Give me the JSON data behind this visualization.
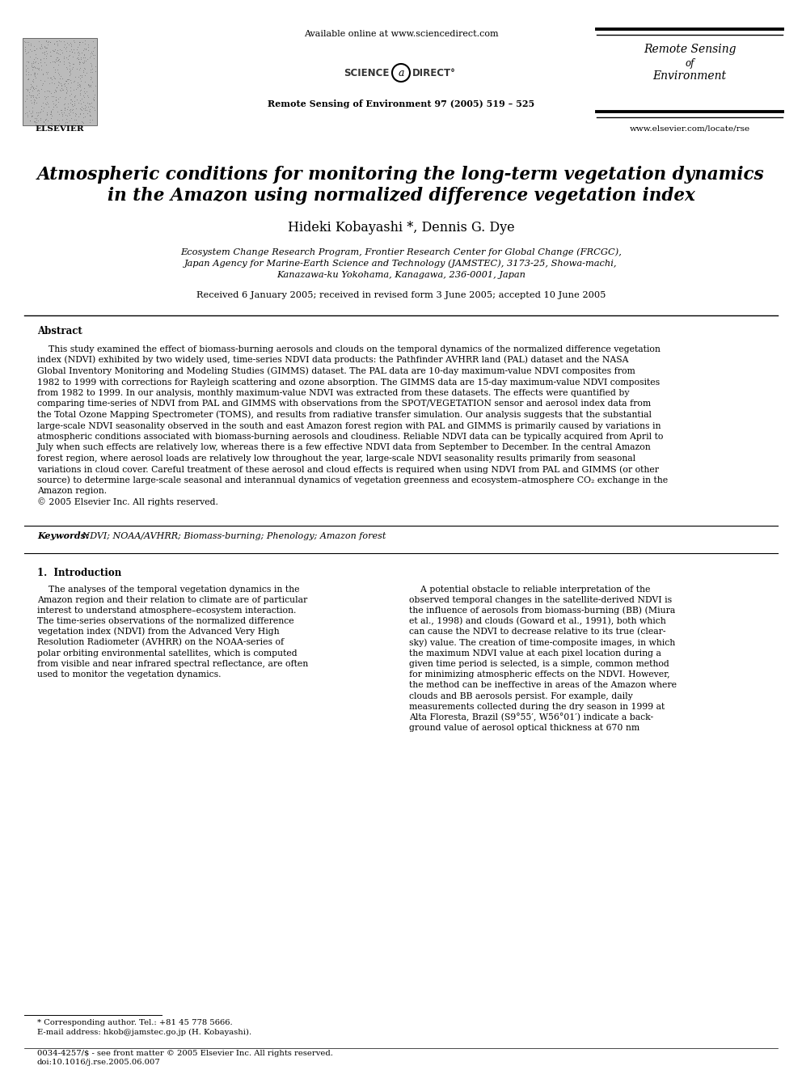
{
  "page_bg": "#ffffff",
  "header": {
    "available_online": "Available online at www.sciencedirect.com",
    "journal_ref": "Remote Sensing of Environment 97 (2005) 519 – 525",
    "journal_name_line1": "Remote Sensing",
    "journal_name_of": "of",
    "journal_name_line2": "Environment",
    "journal_url": "www.elsevier.com/locate/rse"
  },
  "title_line1": "Atmospheric conditions for monitoring the long-term vegetation dynamics",
  "title_line2": "in the Amazon using normalized difference vegetation index",
  "authors": "Hideki Kobayashi *, Dennis G. Dye",
  "affiliation_line1": "Ecosystem Change Research Program, Frontier Research Center for Global Change (FRCGC),",
  "affiliation_line2": "Japan Agency for Marine-Earth Science and Technology (JAMSTEC), 3173-25, Showa-machi,",
  "affiliation_line3": "Kanazawa-ku Yokohama, Kanagawa, 236-0001, Japan",
  "received": "Received 6 January 2005; received in revised form 3 June 2005; accepted 10 June 2005",
  "abstract_title": "Abstract",
  "abstract_lines": [
    "    This study examined the effect of biomass-burning aerosols and clouds on the temporal dynamics of the normalized difference vegetation",
    "index (NDVI) exhibited by two widely used, time-series NDVI data products: the Pathfinder AVHRR land (PAL) dataset and the NASA",
    "Global Inventory Monitoring and Modeling Studies (GIMMS) dataset. The PAL data are 10-day maximum-value NDVI composites from",
    "1982 to 1999 with corrections for Rayleigh scattering and ozone absorption. The GIMMS data are 15-day maximum-value NDVI composites",
    "from 1982 to 1999. In our analysis, monthly maximum-value NDVI was extracted from these datasets. The effects were quantified by",
    "comparing time-series of NDVI from PAL and GIMMS with observations from the SPOT/VEGETATION sensor and aerosol index data from",
    "the Total Ozone Mapping Spectrometer (TOMS), and results from radiative transfer simulation. Our analysis suggests that the substantial",
    "large-scale NDVI seasonality observed in the south and east Amazon forest region with PAL and GIMMS is primarily caused by variations in",
    "atmospheric conditions associated with biomass-burning aerosols and cloudiness. Reliable NDVI data can be typically acquired from April to",
    "July when such effects are relatively low, whereas there is a few effective NDVI data from September to December. In the central Amazon",
    "forest region, where aerosol loads are relatively low throughout the year, large-scale NDVI seasonality results primarily from seasonal",
    "variations in cloud cover. Careful treatment of these aerosol and cloud effects is required when using NDVI from PAL and GIMMS (or other",
    "source) to determine large-scale seasonal and interannual dynamics of vegetation greenness and ecosystem–atmosphere CO₂ exchange in the",
    "Amazon region.",
    "© 2005 Elsevier Inc. All rights reserved."
  ],
  "keywords_label": "Keywords:",
  "keywords_text": " NDVI; NOAA/AVHRR; Biomass-burning; Phenology; Amazon forest",
  "section1_title": "1.  Introduction",
  "col1_lines": [
    "    The analyses of the temporal vegetation dynamics in the",
    "Amazon region and their relation to climate are of particular",
    "interest to understand atmosphere–ecosystem interaction.",
    "The time-series observations of the normalized difference",
    "vegetation index (NDVI) from the Advanced Very High",
    "Resolution Radiometer (AVHRR) on the NOAA-series of",
    "polar orbiting environmental satellites, which is computed",
    "from visible and near infrared spectral reflectance, are often",
    "used to monitor the vegetation dynamics."
  ],
  "col2_lines": [
    "    A potential obstacle to reliable interpretation of the",
    "observed temporal changes in the satellite-derived NDVI is",
    "the influence of aerosols from biomass-burning (BB) (Miura",
    "et al., 1998) and clouds (Goward et al., 1991), both which",
    "can cause the NDVI to decrease relative to its true (clear-",
    "sky) value. The creation of time-composite images, in which",
    "the maximum NDVI value at each pixel location during a",
    "given time period is selected, is a simple, common method",
    "for minimizing atmospheric effects on the NDVI. However,",
    "the method can be ineffective in areas of the Amazon where",
    "clouds and BB aerosols persist. For example, daily",
    "measurements collected during the dry season in 1999 at",
    "Alta Floresta, Brazil (S9°55′, W56°01′) indicate a back-",
    "ground value of aerosol optical thickness at 670 nm"
  ],
  "footnote_line1": "* Corresponding author. Tel.: +81 45 778 5666.",
  "footnote_line2": "E-mail address: hkob@jamstec.go.jp (H. Kobayashi).",
  "footer_line1": "0034-4257/$ - see front matter © 2005 Elsevier Inc. All rights reserved.",
  "footer_line2": "doi:10.1016/j.rse.2005.06.007"
}
